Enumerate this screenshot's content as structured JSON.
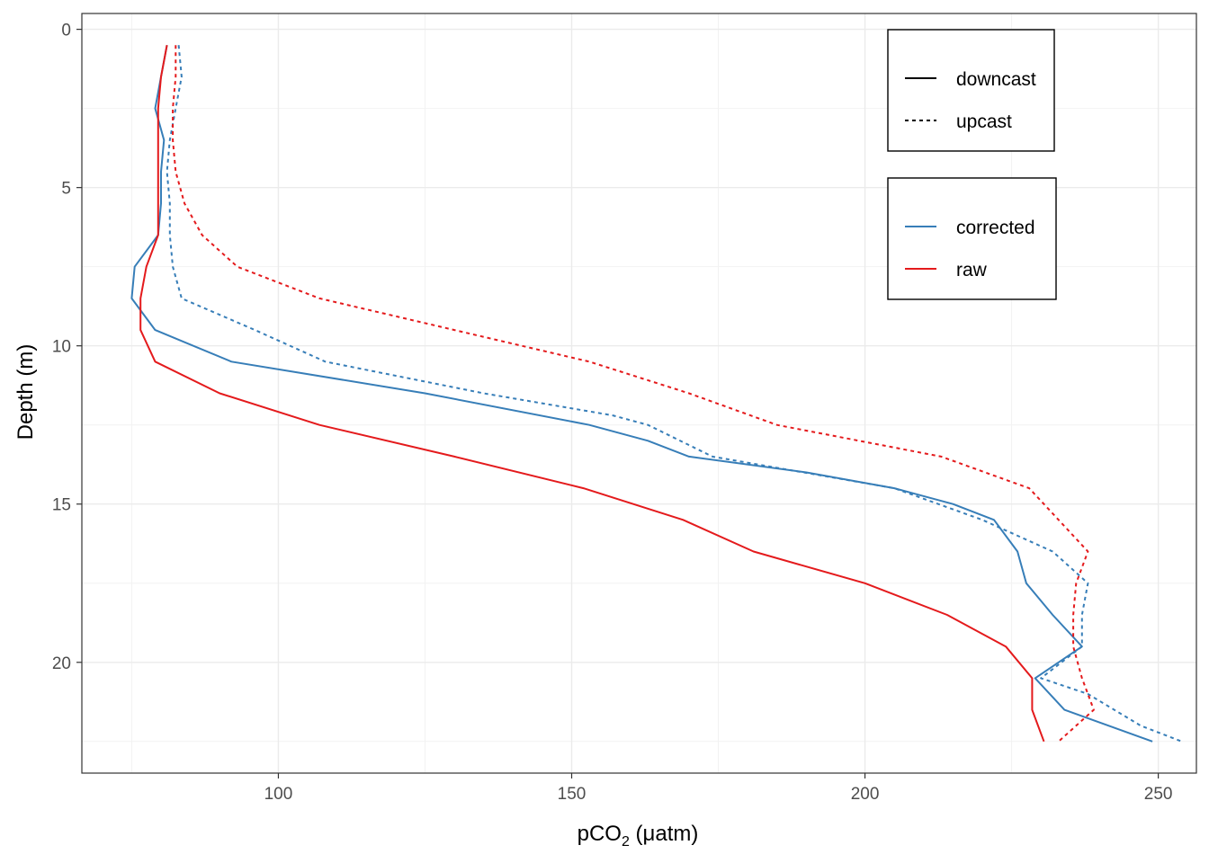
{
  "chart_data": {
    "type": "line",
    "title": "",
    "xlabel": {
      "main": "pCO",
      "sub": "2",
      "unit": " (μatm)"
    },
    "ylabel": "Depth (m)",
    "xlim": [
      66.5,
      256.5
    ],
    "ylim": [
      23.5,
      -0.5
    ],
    "y_reversed": true,
    "x_ticks": [
      100,
      150,
      200,
      250
    ],
    "x_tick_labels": [
      "100",
      "150",
      "200",
      "250"
    ],
    "y_ticks": [
      0,
      5,
      10,
      15,
      20
    ],
    "y_tick_labels": [
      "0",
      "5",
      "10",
      "15",
      "20"
    ],
    "grid": true,
    "legend_position": "top-right",
    "legends": [
      {
        "entries": [
          {
            "label": "downcast",
            "dash": "solid"
          },
          {
            "label": "upcast",
            "dash": "dotted"
          }
        ]
      },
      {
        "entries": [
          {
            "label": "corrected",
            "color": "#377eb8"
          },
          {
            "label": "raw",
            "color": "#e41a1c"
          }
        ]
      }
    ],
    "series": [
      {
        "name": "corrected / downcast",
        "color": "#377eb8",
        "dash": "solid",
        "points": [
          [
            81,
            0.5
          ],
          [
            80,
            1.5
          ],
          [
            79,
            2.5
          ],
          [
            80.5,
            3.5
          ],
          [
            80,
            4.5
          ],
          [
            80,
            5.5
          ],
          [
            79.5,
            6.5
          ],
          [
            75.5,
            7.5
          ],
          [
            75,
            8.5
          ],
          [
            79,
            9.5
          ],
          [
            92,
            10.5
          ],
          [
            125,
            11.5
          ],
          [
            153,
            12.5
          ],
          [
            163,
            13
          ],
          [
            170,
            13.5
          ],
          [
            190,
            14
          ],
          [
            205,
            14.5
          ],
          [
            215,
            15
          ],
          [
            222,
            15.5
          ],
          [
            226,
            16.5
          ],
          [
            227.5,
            17.5
          ],
          [
            232,
            18.5
          ],
          [
            237,
            19.5
          ],
          [
            229,
            20.5
          ],
          [
            234,
            21.5
          ],
          [
            249,
            22.5
          ]
        ]
      },
      {
        "name": "corrected / upcast",
        "color": "#377eb8",
        "dash": "dotted",
        "points": [
          [
            83,
            0.5
          ],
          [
            83.5,
            1.5
          ],
          [
            82.5,
            2.5
          ],
          [
            81.5,
            3.5
          ],
          [
            81,
            4.5
          ],
          [
            81.5,
            5.5
          ],
          [
            81.5,
            6.5
          ],
          [
            82,
            7.5
          ],
          [
            83.5,
            8.5
          ],
          [
            96,
            9.5
          ],
          [
            108,
            10.5
          ],
          [
            135,
            11.5
          ],
          [
            157,
            12.2
          ],
          [
            163,
            12.5
          ],
          [
            174,
            13.5
          ],
          [
            205,
            14.5
          ],
          [
            220,
            15.5
          ],
          [
            232,
            16.5
          ],
          [
            238,
            17.5
          ],
          [
            237,
            18.5
          ],
          [
            237,
            19.5
          ],
          [
            230,
            20.5
          ],
          [
            238,
            21
          ],
          [
            247,
            22
          ],
          [
            254,
            22.5
          ]
        ]
      },
      {
        "name": "raw / downcast",
        "color": "#e41a1c",
        "dash": "solid",
        "points": [
          [
            81,
            0.5
          ],
          [
            80,
            1.5
          ],
          [
            79.5,
            2.5
          ],
          [
            79.5,
            3.5
          ],
          [
            79.5,
            4.5
          ],
          [
            79.5,
            5.5
          ],
          [
            79.5,
            6.5
          ],
          [
            77.5,
            7.5
          ],
          [
            76.5,
            8.5
          ],
          [
            76.5,
            9.5
          ],
          [
            79,
            10.5
          ],
          [
            90,
            11.5
          ],
          [
            107,
            12.5
          ],
          [
            130,
            13.5
          ],
          [
            152,
            14.5
          ],
          [
            169,
            15.5
          ],
          [
            181,
            16.5
          ],
          [
            200,
            17.5
          ],
          [
            214,
            18.5
          ],
          [
            224,
            19.5
          ],
          [
            228.5,
            20.5
          ],
          [
            228.5,
            21.5
          ],
          [
            230.5,
            22.5
          ]
        ]
      },
      {
        "name": "raw / upcast",
        "color": "#e41a1c",
        "dash": "dotted",
        "points": [
          [
            82.5,
            0.5
          ],
          [
            82.5,
            1.5
          ],
          [
            82,
            2.5
          ],
          [
            82,
            3.5
          ],
          [
            82.5,
            4.5
          ],
          [
            84,
            5.5
          ],
          [
            87,
            6.5
          ],
          [
            93,
            7.5
          ],
          [
            107,
            8.5
          ],
          [
            130,
            9.5
          ],
          [
            153,
            10.5
          ],
          [
            170,
            11.5
          ],
          [
            185,
            12.5
          ],
          [
            213,
            13.5
          ],
          [
            228,
            14.5
          ],
          [
            233,
            15.5
          ],
          [
            238,
            16.5
          ],
          [
            236,
            17.5
          ],
          [
            235.5,
            18.5
          ],
          [
            235.5,
            19.5
          ],
          [
            237,
            20.5
          ],
          [
            239,
            21.5
          ],
          [
            233,
            22.5
          ]
        ]
      }
    ]
  }
}
